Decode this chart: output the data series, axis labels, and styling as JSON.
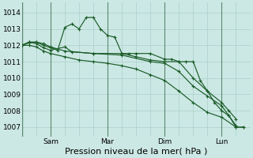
{
  "bg_color": "#cce8e4",
  "grid_color": "#aacfcb",
  "line_color": "#1a5c28",
  "vline_color": "#5a8870",
  "xtick_labels": [
    "",
    "Sam",
    "",
    "Mar",
    "",
    "Dim",
    "",
    "Lun",
    ""
  ],
  "xtick_positions": [
    0,
    1,
    2,
    3,
    4,
    5,
    6,
    7,
    8
  ],
  "ytick_positions": [
    1007,
    1008,
    1009,
    1010,
    1011,
    1012,
    1013,
    1014
  ],
  "ylim": [
    1006.4,
    1014.6
  ],
  "xlim": [
    0.0,
    8.0
  ],
  "xlabel": "Pression niveau de la mer( hPa )",
  "series": [
    {
      "x": [
        0.0,
        0.25,
        0.5,
        0.75,
        1.0,
        1.25,
        1.5,
        1.75,
        2.0,
        2.25,
        2.5,
        2.75,
        3.0,
        3.25,
        3.5,
        3.75,
        4.0,
        4.5,
        5.0,
        5.25,
        5.5,
        5.75,
        6.0,
        6.25,
        6.5,
        6.75,
        7.0,
        7.25,
        7.5
      ],
      "y": [
        1012.0,
        1012.2,
        1012.2,
        1012.0,
        1011.85,
        1011.7,
        1013.1,
        1013.3,
        1013.0,
        1013.7,
        1013.7,
        1013.0,
        1012.6,
        1012.5,
        1011.5,
        1011.5,
        1011.5,
        1011.5,
        1011.15,
        1011.15,
        1011.0,
        1011.0,
        1011.0,
        1009.85,
        1009.2,
        1008.5,
        1008.0,
        1007.7,
        1007.1
      ]
    },
    {
      "x": [
        0.0,
        0.25,
        0.5,
        0.75,
        1.0,
        1.5,
        1.75,
        2.5,
        3.5,
        4.0,
        4.5,
        5.0,
        5.5,
        6.0,
        6.5,
        7.0,
        7.25,
        7.5
      ],
      "y": [
        1012.0,
        1012.2,
        1012.1,
        1011.85,
        1011.7,
        1011.9,
        1011.6,
        1011.5,
        1011.5,
        1011.3,
        1011.1,
        1011.0,
        1011.0,
        1010.0,
        1009.2,
        1008.5,
        1008.0,
        1007.5
      ]
    },
    {
      "x": [
        0.0,
        0.25,
        0.5,
        0.75,
        1.0,
        1.5,
        2.5,
        3.5,
        4.5,
        5.0,
        5.5,
        6.0,
        6.5,
        7.0,
        7.25,
        7.5,
        7.75
      ],
      "y": [
        1012.0,
        1012.15,
        1012.2,
        1012.1,
        1011.9,
        1011.65,
        1011.5,
        1011.4,
        1011.0,
        1010.9,
        1010.4,
        1009.5,
        1008.9,
        1008.3,
        1007.7,
        1007.0,
        1007.0
      ]
    },
    {
      "x": [
        0.0,
        0.25,
        0.5,
        0.75,
        1.0,
        1.5,
        2.0,
        2.5,
        3.0,
        3.5,
        4.0,
        4.5,
        5.0,
        5.5,
        6.0,
        6.5,
        7.0,
        7.5,
        7.75
      ],
      "y": [
        1012.0,
        1012.0,
        1011.9,
        1011.65,
        1011.5,
        1011.3,
        1011.1,
        1011.0,
        1010.9,
        1010.75,
        1010.55,
        1010.2,
        1009.85,
        1009.2,
        1008.5,
        1007.9,
        1007.6,
        1007.0,
        1007.0
      ]
    }
  ],
  "marker": "+",
  "markersize": 3,
  "linewidth": 0.85,
  "xlabel_fontsize": 8,
  "tick_fontsize": 6.5,
  "vline_positions": [
    1,
    3,
    5,
    7
  ],
  "grid_spacing_x": 0.5
}
